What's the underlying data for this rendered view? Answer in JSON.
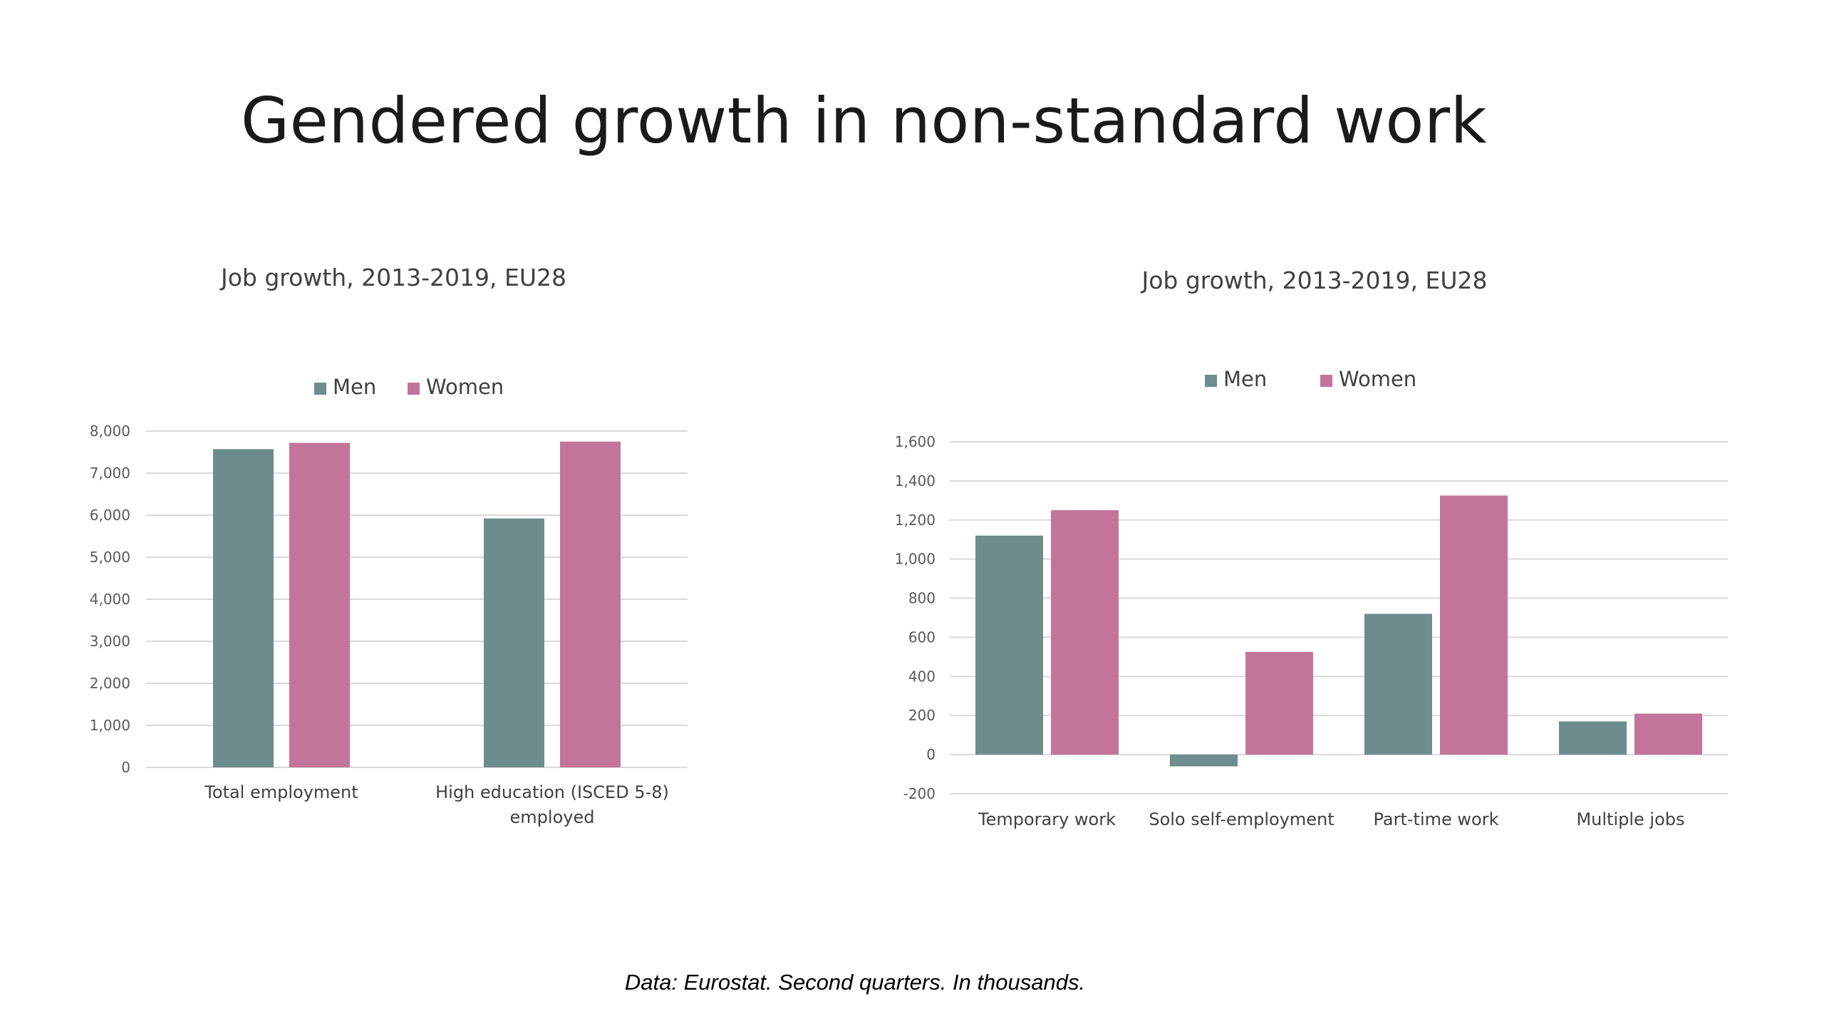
{
  "slide": {
    "title": "Gendered growth in non-standard work",
    "footnote": "Data: Eurostat. Second quarters. In thousands."
  },
  "colors": {
    "men": "#6d8c8c",
    "women": "#c37599",
    "grid": "#d9d9d9"
  },
  "chart_data": [
    {
      "type": "bar",
      "title": "Job growth, 2013-2019, EU28",
      "categories": [
        "Total employment",
        "High education (ISCED 5-8)\nemployed"
      ],
      "series": [
        {
          "name": "Men",
          "values": [
            7570,
            5920
          ]
        },
        {
          "name": "Women",
          "values": [
            7720,
            7750
          ]
        }
      ],
      "ylim": [
        0,
        8000
      ],
      "yticks": [
        0,
        1000,
        2000,
        3000,
        4000,
        5000,
        6000,
        7000,
        8000
      ],
      "ytick_labels": [
        "0",
        "1,000",
        "2,000",
        "3,000",
        "4,000",
        "5,000",
        "6,000",
        "7,000",
        "8,000"
      ],
      "grid": true,
      "legend": "top-center"
    },
    {
      "type": "bar",
      "title": "Job growth, 2013-2019, EU28",
      "categories": [
        "Temporary work",
        "Solo self-employment",
        "Part-time work",
        "Multiple jobs"
      ],
      "series": [
        {
          "name": "Men",
          "values": [
            1120,
            -60,
            720,
            170
          ]
        },
        {
          "name": "Women",
          "values": [
            1250,
            525,
            1325,
            210
          ]
        }
      ],
      "ylim": [
        -200,
        1600
      ],
      "yticks": [
        -200,
        0,
        200,
        400,
        600,
        800,
        1000,
        1200,
        1400,
        1600
      ],
      "ytick_labels": [
        "-200",
        "0",
        "200",
        "400",
        "600",
        "800",
        "1,000",
        "1,200",
        "1,400",
        "1,600"
      ],
      "grid": true,
      "legend": "top-center"
    }
  ]
}
